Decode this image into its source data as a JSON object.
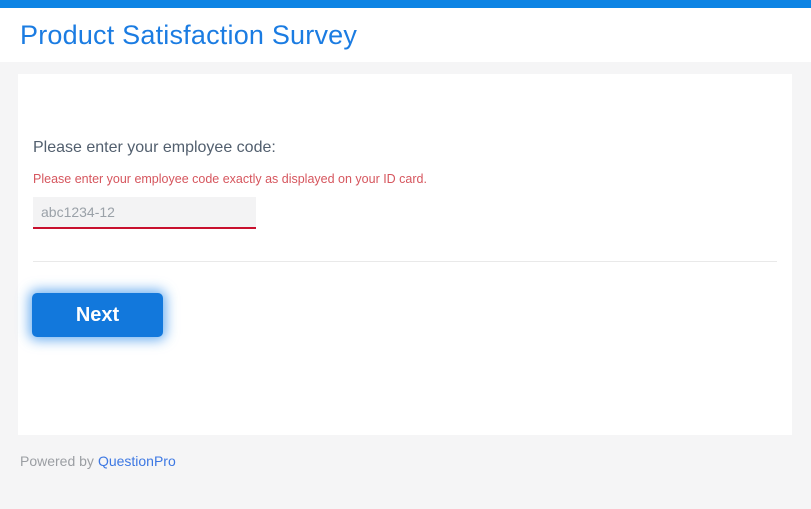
{
  "page": {
    "title": "Product Satisfaction Survey"
  },
  "survey": {
    "question": "Please enter your employee code:",
    "helper": "Please enter your employee code exactly as displayed on your ID card.",
    "input_placeholder": "abc1234-12",
    "input_value": "",
    "next_label": "Next"
  },
  "footer": {
    "powered_by": "Powered by",
    "brand": "QuestionPro"
  },
  "colors": {
    "top_bar_blue": "#0d84e4",
    "title_blue": "#1b7ce2",
    "button_blue": "#1278dc",
    "helper_red": "#d6565e",
    "input_underline_red": "#c8102e",
    "link_blue": "#3d78e3",
    "question_text": "#525f6e",
    "page_background": "#f5f5f6"
  }
}
